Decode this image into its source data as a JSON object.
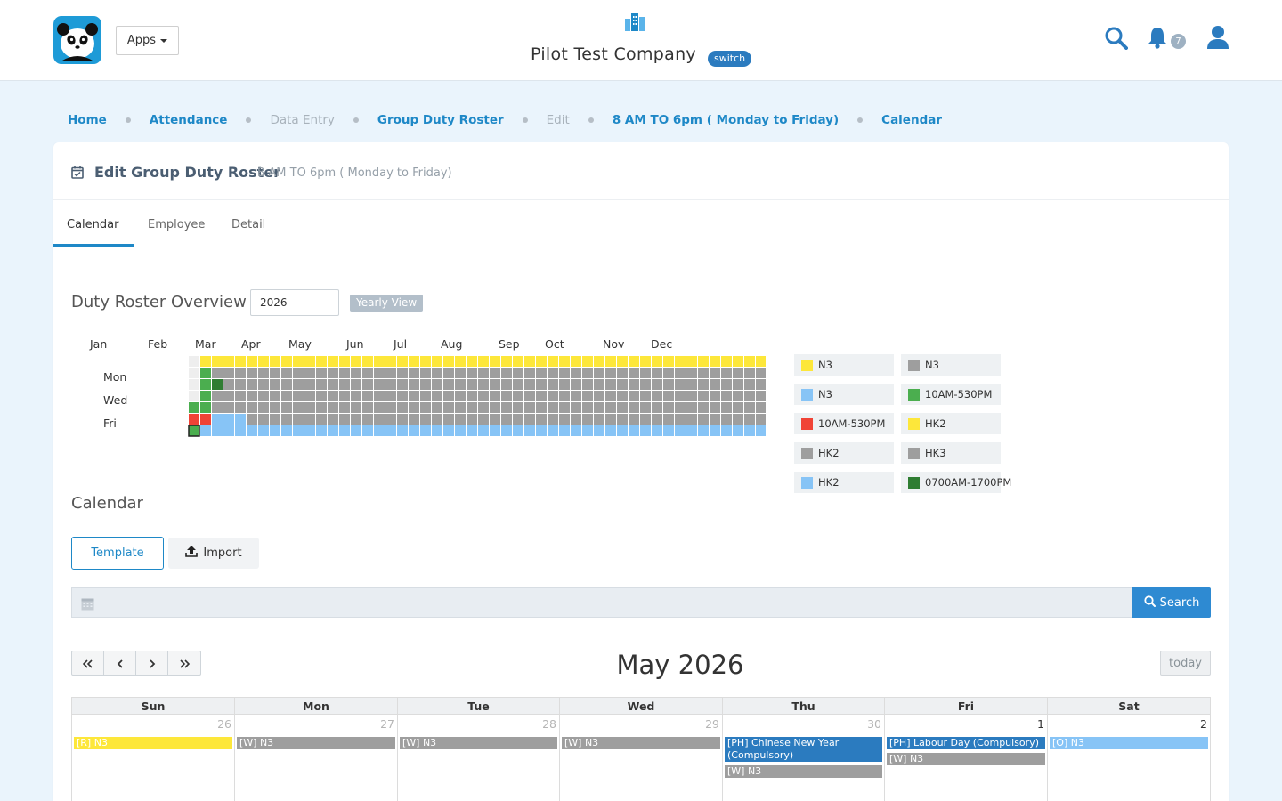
{
  "header": {
    "apps_label": "Apps",
    "company_name": "Pilot Test Company",
    "switch_label": "switch",
    "notification_count": "7"
  },
  "breadcrumb": [
    {
      "label": "Home"
    },
    {
      "label": "Attendance"
    },
    {
      "label": "Data Entry"
    },
    {
      "label": "Group Duty Roster"
    },
    {
      "label": "Edit"
    },
    {
      "label": "8 AM TO 6pm ( Monday to Friday)"
    },
    {
      "label": "Calendar"
    }
  ],
  "card": {
    "title": "Edit Group Duty Roster",
    "subtitle": "8 AM TO 6pm ( Monday to Friday)"
  },
  "tabs": [
    {
      "label": "Calendar",
      "active": true
    },
    {
      "label": "Employee",
      "active": false
    },
    {
      "label": "Detail",
      "active": false
    }
  ],
  "overview": {
    "title": "Duty Roster Overview",
    "year_value": "2026",
    "view_badge": "Yearly View",
    "months": [
      "Jan",
      "Feb",
      "Mar",
      "Apr",
      "May",
      "Jun",
      "Jul",
      "Aug",
      "Sep",
      "Oct",
      "Nov",
      "Dec"
    ],
    "weekday_labels": [
      "Mon",
      "Wed",
      "Fri"
    ]
  },
  "legend": [
    {
      "label": "N3",
      "color": "#fde73a"
    },
    {
      "label": "N3",
      "color": "#9e9e9e"
    },
    {
      "label": "N3",
      "color": "#87c4f6"
    },
    {
      "label": "10AM-530PM",
      "color": "#4bae4f"
    },
    {
      "label": "10AM-530PM",
      "color": "#f04336"
    },
    {
      "label": "HK2",
      "color": "#fde73a"
    },
    {
      "label": "HK2",
      "color": "#9e9e9e"
    },
    {
      "label": "HK3",
      "color": "#9e9e9e"
    },
    {
      "label": "HK2",
      "color": "#87c4f6"
    },
    {
      "label": "0700AM-1700PM",
      "color": "#2f7d32"
    }
  ],
  "calendar": {
    "title": "Calendar",
    "template_label": "Template",
    "import_label": "Import",
    "search_label": "Search",
    "month_title": "May 2026",
    "today_label": "today",
    "weekdays": [
      "Sun",
      "Mon",
      "Tue",
      "Wed",
      "Thu",
      "Fri",
      "Sat"
    ],
    "days": [
      {
        "num": "26",
        "other_month": true,
        "events": [
          {
            "text": "[R] N3",
            "color": "#fde73a"
          }
        ]
      },
      {
        "num": "27",
        "other_month": true,
        "events": [
          {
            "text": "[W] N3",
            "color": "#9e9e9e"
          }
        ]
      },
      {
        "num": "28",
        "other_month": true,
        "events": [
          {
            "text": "[W] N3",
            "color": "#9e9e9e"
          }
        ]
      },
      {
        "num": "29",
        "other_month": true,
        "events": [
          {
            "text": "[W] N3",
            "color": "#9e9e9e"
          }
        ]
      },
      {
        "num": "30",
        "other_month": true,
        "events": [
          {
            "text": "[PH] Chinese New Year (Compulsory)",
            "color": "#2b7bbf"
          },
          {
            "text": "[W] N3",
            "color": "#9e9e9e"
          }
        ]
      },
      {
        "num": "1",
        "other_month": false,
        "events": [
          {
            "text": "[PH] Labour Day (Compulsory)",
            "color": "#2b7bbf"
          },
          {
            "text": "[W] N3",
            "color": "#9e9e9e"
          }
        ]
      },
      {
        "num": "2",
        "other_month": false,
        "events": [
          {
            "text": "[O] N3",
            "color": "#87c4f6"
          }
        ]
      }
    ]
  },
  "colors": {
    "accent": "#1e88c7",
    "brand": "#1e9bd7",
    "yellow": "#fde73a",
    "gray": "#9e9e9e",
    "light_blue": "#87c4f6",
    "green": "#4bae4f",
    "red": "#f04336",
    "dark_green": "#2f7d32",
    "holiday_blue": "#2b7bbf"
  },
  "icons": [
    "panda-logo-icon",
    "buildings-icon",
    "search-icon",
    "bell-icon",
    "user-icon",
    "calendar-check-icon",
    "upload-icon",
    "calendar-icon",
    "double-chevron-left-icon",
    "chevron-left-icon",
    "chevron-right-icon",
    "double-chevron-right-icon"
  ]
}
